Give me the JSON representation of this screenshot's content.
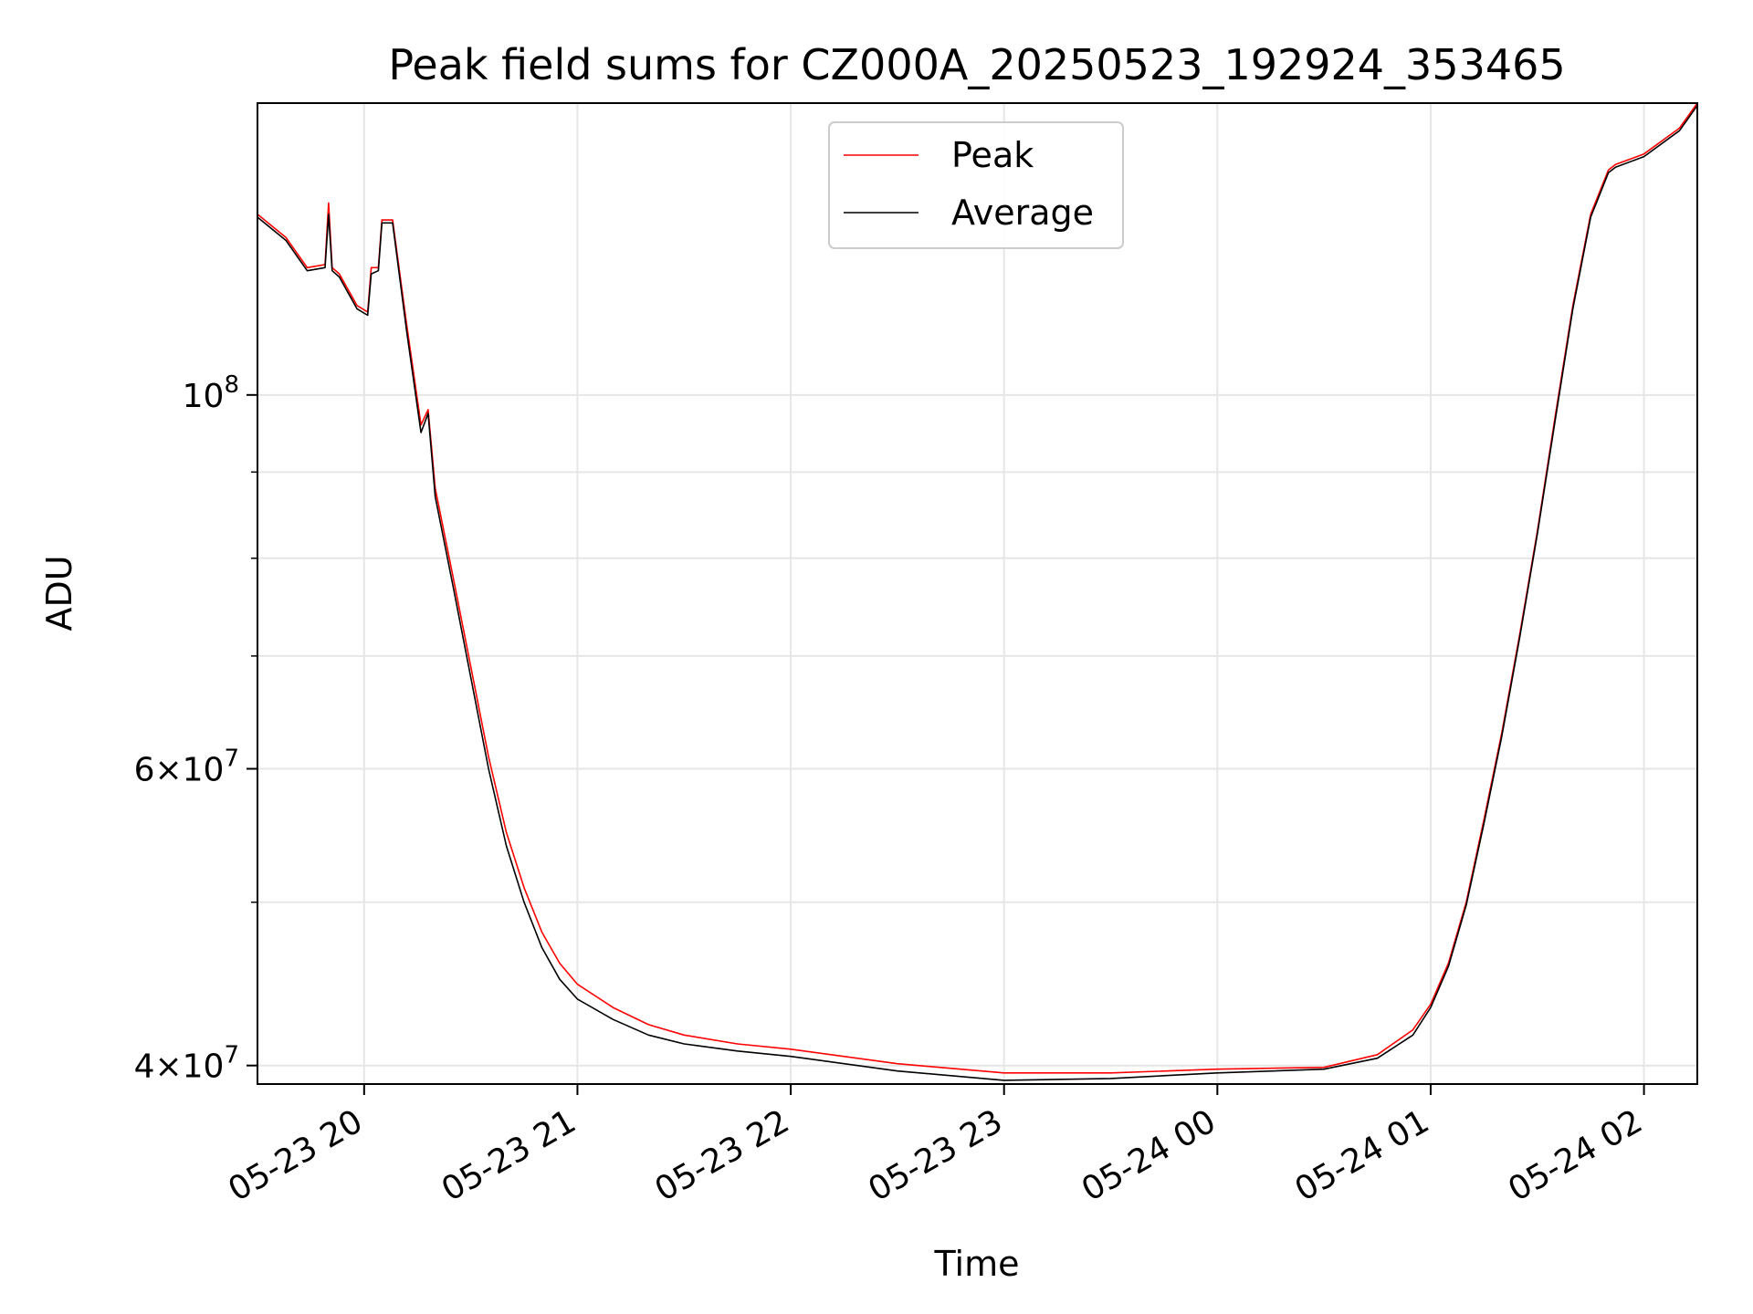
{
  "chart_data": {
    "type": "line",
    "title": "Peak field sums for CZ000A_20250523_192924_353465",
    "xlabel": "Time",
    "ylabel": "ADU",
    "xlim": [
      "2025-05-23 19:30",
      "2025-05-24 02:15"
    ],
    "ylim": [
      39000000,
      149000000
    ],
    "yscale": "log",
    "grid": true,
    "legend_position": "upper center",
    "x_ticks": [
      {
        "value": "2025-05-23 20:00",
        "label": "05-23 20"
      },
      {
        "value": "2025-05-23 21:00",
        "label": "05-23 21"
      },
      {
        "value": "2025-05-23 22:00",
        "label": "05-23 22"
      },
      {
        "value": "2025-05-23 23:00",
        "label": "05-23 23"
      },
      {
        "value": "2025-05-24 00:00",
        "label": "05-24 00"
      },
      {
        "value": "2025-05-24 01:00",
        "label": "05-24 01"
      },
      {
        "value": "2025-05-24 02:00",
        "label": "05-24 02"
      }
    ],
    "y_ticks": [
      {
        "value": 40000000,
        "mant": "4",
        "exp": "7"
      },
      {
        "value": 60000000,
        "mant": "6",
        "exp": "7"
      },
      {
        "value": 100000000,
        "mant": "",
        "exp": "8"
      }
    ],
    "y_minor_ticks": [
      50000000,
      70000000,
      80000000,
      90000000
    ],
    "series": [
      {
        "name": "Peak",
        "color": "#ff0000",
        "x": [
          "2025-05-23 19:30",
          "2025-05-23 19:38",
          "2025-05-23 19:44",
          "2025-05-23 19:49",
          "2025-05-23 19:50",
          "2025-05-23 19:51",
          "2025-05-23 19:53",
          "2025-05-23 19:58",
          "2025-05-23 20:01",
          "2025-05-23 20:02",
          "2025-05-23 20:04",
          "2025-05-23 20:05",
          "2025-05-23 20:08",
          "2025-05-23 20:12",
          "2025-05-23 20:16",
          "2025-05-23 20:18",
          "2025-05-23 20:20",
          "2025-05-23 20:25",
          "2025-05-23 20:30",
          "2025-05-23 20:35",
          "2025-05-23 20:40",
          "2025-05-23 20:45",
          "2025-05-23 20:50",
          "2025-05-23 20:55",
          "2025-05-23 21:00",
          "2025-05-23 21:10",
          "2025-05-23 21:20",
          "2025-05-23 21:30",
          "2025-05-23 21:45",
          "2025-05-23 22:00",
          "2025-05-23 22:30",
          "2025-05-23 23:00",
          "2025-05-23 23:30",
          "2025-05-24 00:00",
          "2025-05-24 00:30",
          "2025-05-24 00:45",
          "2025-05-24 00:55",
          "2025-05-24 01:00",
          "2025-05-24 01:05",
          "2025-05-24 01:10",
          "2025-05-24 01:15",
          "2025-05-24 01:20",
          "2025-05-24 01:25",
          "2025-05-24 01:30",
          "2025-05-24 01:35",
          "2025-05-24 01:40",
          "2025-05-24 01:45",
          "2025-05-24 01:50",
          "2025-05-24 01:52",
          "2025-05-24 02:00",
          "2025-05-24 02:10",
          "2025-05-24 02:15"
        ],
        "y": [
          128000000,
          124000000,
          119000000,
          119500000,
          130000000,
          119000000,
          118000000,
          113000000,
          112000000,
          119000000,
          119000000,
          127000000,
          127000000,
          110000000,
          96000000,
          98000000,
          88000000,
          78000000,
          69000000,
          61000000,
          55000000,
          51000000,
          48000000,
          46000000,
          44700000,
          43300000,
          42300000,
          41700000,
          41200000,
          40900000,
          40100000,
          39600000,
          39600000,
          39800000,
          39900000,
          40600000,
          42000000,
          43500000,
          46000000,
          50000000,
          56000000,
          63000000,
          72000000,
          83000000,
          97000000,
          113000000,
          128000000,
          136000000,
          137000000,
          139000000,
          144000000,
          149000000
        ]
      },
      {
        "name": "Average",
        "color": "#000000",
        "x": [
          "2025-05-23 19:30",
          "2025-05-23 19:38",
          "2025-05-23 19:44",
          "2025-05-23 19:49",
          "2025-05-23 19:50",
          "2025-05-23 19:51",
          "2025-05-23 19:53",
          "2025-05-23 19:58",
          "2025-05-23 20:01",
          "2025-05-23 20:02",
          "2025-05-23 20:04",
          "2025-05-23 20:05",
          "2025-05-23 20:08",
          "2025-05-23 20:12",
          "2025-05-23 20:16",
          "2025-05-23 20:18",
          "2025-05-23 20:20",
          "2025-05-23 20:25",
          "2025-05-23 20:30",
          "2025-05-23 20:35",
          "2025-05-23 20:40",
          "2025-05-23 20:45",
          "2025-05-23 20:50",
          "2025-05-23 20:55",
          "2025-05-23 21:00",
          "2025-05-23 21:10",
          "2025-05-23 21:20",
          "2025-05-23 21:30",
          "2025-05-23 21:45",
          "2025-05-23 22:00",
          "2025-05-23 22:30",
          "2025-05-23 23:00",
          "2025-05-23 23:30",
          "2025-05-24 00:00",
          "2025-05-24 00:30",
          "2025-05-24 00:45",
          "2025-05-24 00:55",
          "2025-05-24 01:00",
          "2025-05-24 01:05",
          "2025-05-24 01:10",
          "2025-05-24 01:15",
          "2025-05-24 01:20",
          "2025-05-24 01:25",
          "2025-05-24 01:30",
          "2025-05-24 01:35",
          "2025-05-24 01:40",
          "2025-05-24 01:45",
          "2025-05-24 01:50",
          "2025-05-24 01:52",
          "2025-05-24 02:00",
          "2025-05-24 02:10",
          "2025-05-24 02:15"
        ],
        "y": [
          127500000,
          123500000,
          118500000,
          119000000,
          128000000,
          118500000,
          117500000,
          112500000,
          111500000,
          118000000,
          118500000,
          126500000,
          126500000,
          109000000,
          95000000,
          97500000,
          87000000,
          77000000,
          68000000,
          60000000,
          54000000,
          50000000,
          47000000,
          45000000,
          43800000,
          42600000,
          41700000,
          41200000,
          40800000,
          40500000,
          39700000,
          39200000,
          39300000,
          39600000,
          39800000,
          40400000,
          41700000,
          43300000,
          45800000,
          49800000,
          55700000,
          62700000,
          71700000,
          82700000,
          96500000,
          112500000,
          127500000,
          135500000,
          136500000,
          138500000,
          143500000,
          148500000
        ]
      }
    ]
  }
}
